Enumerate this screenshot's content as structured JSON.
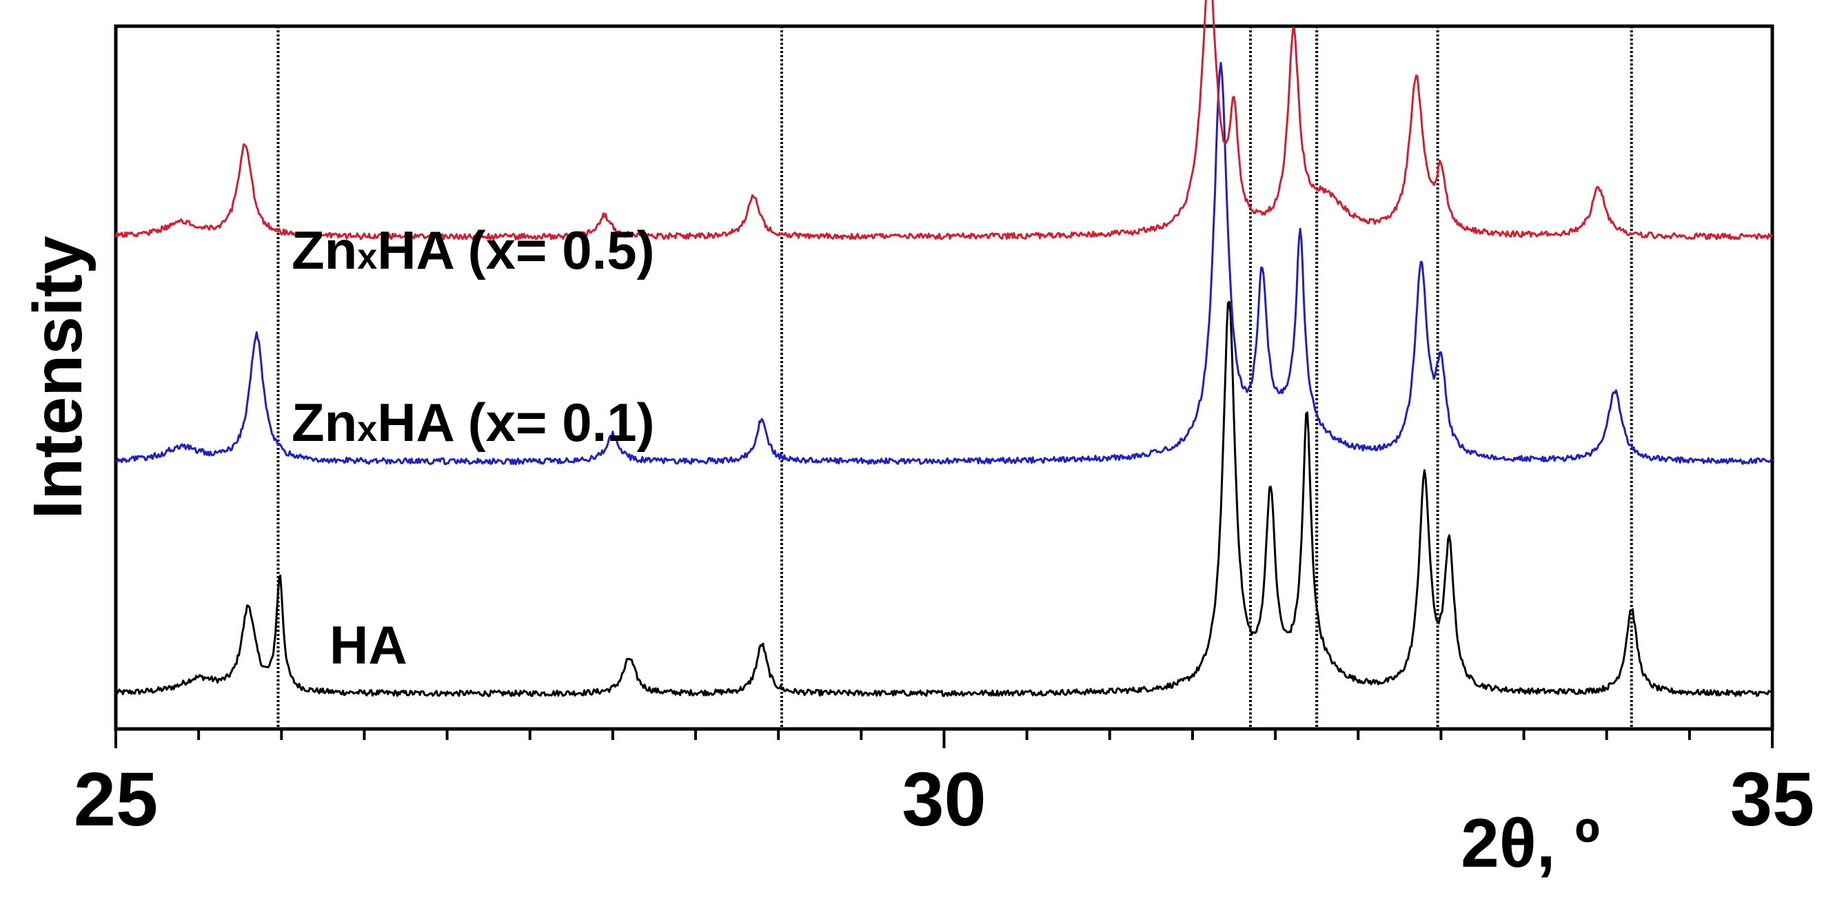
{
  "chart_data": {
    "type": "line",
    "title": "",
    "xlabel": "2θ, º",
    "ylabel": "Intensity",
    "xlim": [
      25,
      35
    ],
    "x_ticks": [
      25,
      30,
      35
    ],
    "x_minor_step": 0.5,
    "y_ticks": "none",
    "reference_lines_x": [
      25.98,
      29.02,
      31.85,
      32.25,
      32.98,
      34.15
    ],
    "series": [
      {
        "name": "HA",
        "label_parts": [
          "HA"
        ],
        "color": "#000000",
        "baseline_offset": 0.05,
        "peaks": [
          [
            25.8,
            0.12,
            0.1
          ],
          [
            25.99,
            0.16,
            0.05
          ],
          [
            25.5,
            0.02,
            0.25
          ],
          [
            28.1,
            0.05,
            0.09
          ],
          [
            28.9,
            0.07,
            0.08
          ],
          [
            31.72,
            0.55,
            0.09
          ],
          [
            31.97,
            0.26,
            0.07
          ],
          [
            32.19,
            0.34,
            0.06
          ],
          [
            32.2,
            0.05,
            0.3
          ],
          [
            32.9,
            0.3,
            0.08
          ],
          [
            33.05,
            0.2,
            0.07
          ],
          [
            34.15,
            0.12,
            0.08
          ]
        ]
      },
      {
        "name": "ZnxHA (x= 0.1)",
        "label_parts": [
          "Zn",
          "x",
          "HA (x= 0.1)"
        ],
        "color": "#2222bb",
        "baseline_offset": 0.38,
        "peaks": [
          [
            25.85,
            0.18,
            0.1
          ],
          [
            25.4,
            0.02,
            0.25
          ],
          [
            28.0,
            0.04,
            0.09
          ],
          [
            28.9,
            0.06,
            0.08
          ],
          [
            31.67,
            0.55,
            0.1
          ],
          [
            31.92,
            0.22,
            0.07
          ],
          [
            32.15,
            0.26,
            0.06
          ],
          [
            32.1,
            0.06,
            0.4
          ],
          [
            32.88,
            0.27,
            0.09
          ],
          [
            33.0,
            0.12,
            0.07
          ],
          [
            34.05,
            0.1,
            0.1
          ]
        ]
      },
      {
        "name": "ZnxHA (x= 0.5)",
        "label_parts": [
          "Zn",
          "x",
          "HA (x= 0.5)"
        ],
        "color": "#cc2233",
        "baseline_offset": 0.7,
        "peaks": [
          [
            25.78,
            0.13,
            0.1
          ],
          [
            25.4,
            0.02,
            0.25
          ],
          [
            27.95,
            0.03,
            0.09
          ],
          [
            28.85,
            0.06,
            0.09
          ],
          [
            31.6,
            0.37,
            0.11
          ],
          [
            31.75,
            0.15,
            0.06
          ],
          [
            32.11,
            0.27,
            0.08
          ],
          [
            32.3,
            0.05,
            0.3
          ],
          [
            32.85,
            0.22,
            0.1
          ],
          [
            33.0,
            0.08,
            0.07
          ],
          [
            33.95,
            0.07,
            0.1
          ]
        ]
      }
    ]
  }
}
